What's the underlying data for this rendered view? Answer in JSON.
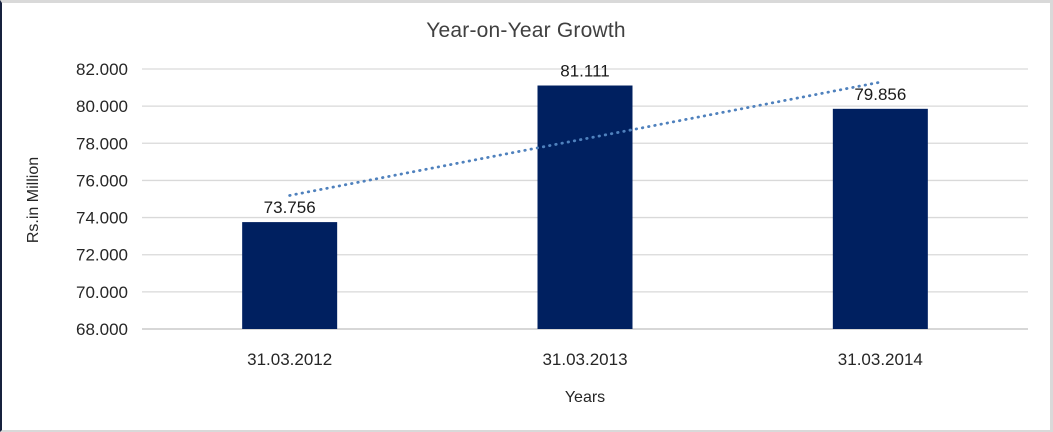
{
  "frame": {
    "background": "#ffffff",
    "border_left_color": "#16213e",
    "border_color": "#d9d9d9"
  },
  "chart_data": {
    "type": "bar",
    "title": "Year-on-Year Growth",
    "categories": [
      "31.03.2012",
      "31.03.2013",
      "31.03.2014"
    ],
    "values": [
      73.756,
      81.111,
      79.856
    ],
    "data_labels": [
      "73.756",
      "81.111",
      "79.856"
    ],
    "xlabel": "Years",
    "ylabel": "Rs.in Million",
    "ylim": [
      68,
      82
    ],
    "ytick_step": 2,
    "ytick_labels": [
      "68.000",
      "70.000",
      "72.000",
      "74.000",
      "76.000",
      "78.000",
      "80.000",
      "82.000"
    ],
    "grid": true,
    "legend": "none",
    "bar_color": "#002060",
    "gridline_color": "#d9d9d9",
    "axis_line_color": "#bfbfbf",
    "text_color": "#262626",
    "title_color": "#404040",
    "trendline": {
      "type": "linear",
      "style": "dotted",
      "color": "#4f81bd"
    }
  }
}
